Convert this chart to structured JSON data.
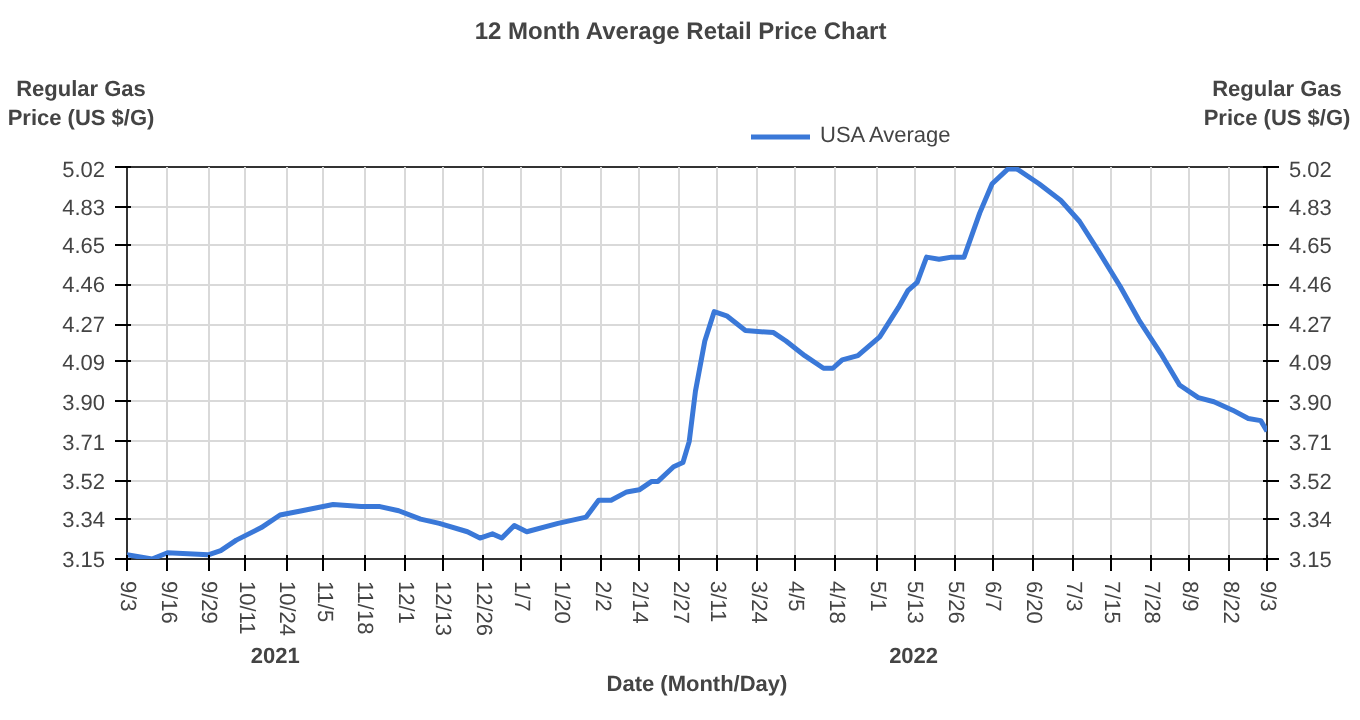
{
  "chart_data": {
    "type": "line",
    "title": "12 Month Average Retail Price Chart",
    "xlabel": "Date (Month/Day)",
    "ylabel": "Regular Gas Price (US $/G)",
    "y2label": "Regular Gas Price (US $/G)",
    "annotations": [
      "2021",
      "2022"
    ],
    "x": [
      "2021-09-03",
      "2021-09-11",
      "2021-09-16",
      "2021-09-29",
      "2021-10-03",
      "2021-10-08",
      "2021-10-16",
      "2021-10-22",
      "2021-10-29",
      "2021-11-08",
      "2021-11-17",
      "2021-11-23",
      "2021-11-29",
      "2021-12-06",
      "2021-12-12",
      "2021-12-21",
      "2021-12-25",
      "2021-12-29",
      "2022-01-01",
      "2022-01-05",
      "2022-01-09",
      "2022-01-19",
      "2022-01-28",
      "2022-02-01",
      "2022-02-05",
      "2022-02-10",
      "2022-02-14",
      "2022-02-18",
      "2022-02-20",
      "2022-02-25",
      "2022-02-28",
      "2022-03-02",
      "2022-03-04",
      "2022-03-07",
      "2022-03-10",
      "2022-03-14",
      "2022-03-20",
      "2022-03-29",
      "2022-04-02",
      "2022-04-08",
      "2022-04-14",
      "2022-04-17",
      "2022-04-20",
      "2022-04-25",
      "2022-05-02",
      "2022-05-08",
      "2022-05-11",
      "2022-05-14",
      "2022-05-17",
      "2022-05-21",
      "2022-05-25",
      "2022-05-29",
      "2022-06-03",
      "2022-06-07",
      "2022-06-12",
      "2022-06-15",
      "2022-06-22",
      "2022-06-29",
      "2022-07-05",
      "2022-07-11",
      "2022-07-18",
      "2022-07-24",
      "2022-07-31",
      "2022-08-06",
      "2022-08-12",
      "2022-08-17",
      "2022-08-23",
      "2022-08-28",
      "2022-09-01",
      "2022-09-03"
    ],
    "series": [
      {
        "name": "USA Average",
        "color": "#3a78d8",
        "values": [
          3.17,
          3.15,
          3.18,
          3.17,
          3.19,
          3.24,
          3.3,
          3.36,
          3.38,
          3.41,
          3.4,
          3.4,
          3.38,
          3.34,
          3.32,
          3.28,
          3.25,
          3.27,
          3.25,
          3.31,
          3.28,
          3.32,
          3.35,
          3.43,
          3.43,
          3.47,
          3.48,
          3.52,
          3.52,
          3.59,
          3.61,
          3.71,
          3.95,
          4.19,
          4.33,
          4.31,
          4.24,
          4.23,
          4.19,
          4.12,
          4.06,
          4.06,
          4.1,
          4.12,
          4.21,
          4.35,
          4.43,
          4.47,
          4.59,
          4.58,
          4.59,
          4.59,
          4.8,
          4.94,
          5.01,
          5.01,
          4.94,
          4.86,
          4.76,
          4.62,
          4.45,
          4.29,
          4.13,
          3.98,
          3.92,
          3.9,
          3.86,
          3.82,
          3.81,
          3.76
        ]
      }
    ],
    "xlim": [
      "2021-09-03",
      "2022-09-03"
    ],
    "xticks": [
      {
        "value": "2021-09-03",
        "label": "9/3"
      },
      {
        "value": "2021-09-16",
        "label": "9/16"
      },
      {
        "value": "2021-09-29",
        "label": "9/29"
      },
      {
        "value": "2021-10-11",
        "label": "10/11"
      },
      {
        "value": "2021-10-24",
        "label": "10/24"
      },
      {
        "value": "2021-11-05",
        "label": "11/5"
      },
      {
        "value": "2021-11-18",
        "label": "11/18"
      },
      {
        "value": "2021-12-01",
        "label": "12/1"
      },
      {
        "value": "2021-12-13",
        "label": "12/13"
      },
      {
        "value": "2021-12-26",
        "label": "12/26"
      },
      {
        "value": "2022-01-07",
        "label": "1/7"
      },
      {
        "value": "2022-01-20",
        "label": "1/20"
      },
      {
        "value": "2022-02-02",
        "label": "2/2"
      },
      {
        "value": "2022-02-14",
        "label": "2/14"
      },
      {
        "value": "2022-02-27",
        "label": "2/27"
      },
      {
        "value": "2022-03-11",
        "label": "3/11"
      },
      {
        "value": "2022-03-24",
        "label": "3/24"
      },
      {
        "value": "2022-04-05",
        "label": "4/5"
      },
      {
        "value": "2022-04-18",
        "label": "4/18"
      },
      {
        "value": "2022-05-01",
        "label": "5/1"
      },
      {
        "value": "2022-05-13",
        "label": "5/13"
      },
      {
        "value": "2022-05-26",
        "label": "5/26"
      },
      {
        "value": "2022-06-07",
        "label": "6/7"
      },
      {
        "value": "2022-06-20",
        "label": "6/20"
      },
      {
        "value": "2022-07-03",
        "label": "7/3"
      },
      {
        "value": "2022-07-15",
        "label": "7/15"
      },
      {
        "value": "2022-07-28",
        "label": "7/28"
      },
      {
        "value": "2022-08-09",
        "label": "8/9"
      },
      {
        "value": "2022-08-22",
        "label": "8/22"
      },
      {
        "value": "2022-09-03",
        "label": "9/3"
      }
    ],
    "ylim": [
      3.15,
      5.02
    ],
    "yticks": [
      3.15,
      3.34,
      3.52,
      3.71,
      {
        "value": 3.9,
        "label": "3.90"
      },
      4.09,
      4.27,
      4.46,
      4.65,
      4.83,
      5.02
    ],
    "y2lim": [
      3.15,
      5.02
    ],
    "y2ticks": [
      3.15,
      3.34,
      3.52,
      3.71,
      {
        "value": 3.9,
        "label": "3.90"
      },
      4.09,
      4.27,
      4.46,
      4.65,
      4.83,
      5.02
    ],
    "grid": true,
    "legend": "top",
    "marker": "none",
    "line_style": "solid"
  }
}
